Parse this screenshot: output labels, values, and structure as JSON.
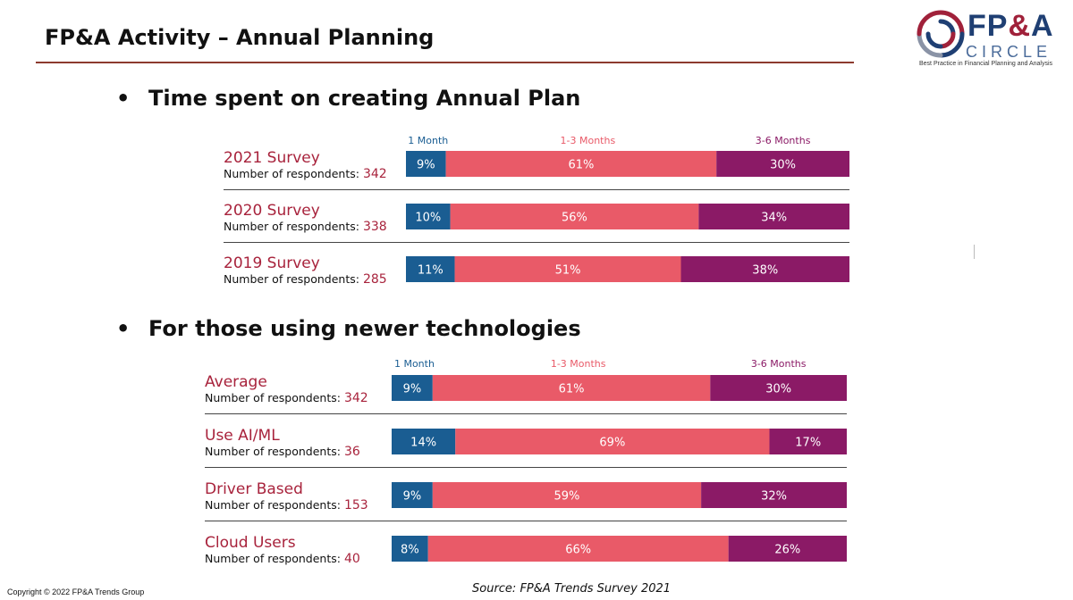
{
  "header": {
    "title": "FP&A Activity – Annual Planning",
    "logo_text_main": "FP",
    "logo_text_amp": "&",
    "logo_text_main2": "A",
    "logo_text_sub": "CIRCLE",
    "logo_tagline": "Best Practice in Financial Planning and Analysis"
  },
  "colors": {
    "one_month": "#1a5d92",
    "one_to_three": "#e95a68",
    "three_to_six": "#8b1a66",
    "label_red": "#a8233c",
    "legend_blue": "#1a5d92",
    "legend_pink": "#e95a68",
    "legend_purple": "#8b1a66"
  },
  "bullets": [
    "Time spent on creating Annual Plan",
    "For those using newer technologies"
  ],
  "chart_data": [
    {
      "type": "bar",
      "stacked": true,
      "orientation": "horizontal",
      "legend": [
        "1 Month",
        "1-3 Months",
        "3-6 Months"
      ],
      "respondents_label": "Number of respondents:",
      "rows": [
        {
          "label": "2021 Survey",
          "respondents": "342",
          "values": [
            9,
            61,
            30
          ]
        },
        {
          "label": "2020 Survey",
          "respondents": "338",
          "values": [
            10,
            56,
            34
          ]
        },
        {
          "label": "2019 Survey",
          "respondents": "285",
          "values": [
            11,
            51,
            38
          ]
        }
      ]
    },
    {
      "type": "bar",
      "stacked": true,
      "orientation": "horizontal",
      "legend": [
        "1 Month",
        "1-3 Months",
        "3-6 Months"
      ],
      "respondents_label": "Number of respondents:",
      "rows": [
        {
          "label": "Average",
          "respondents": "342",
          "values": [
            9,
            61,
            30
          ]
        },
        {
          "label": "Use AI/ML",
          "respondents": "36",
          "values": [
            14,
            69,
            17
          ]
        },
        {
          "label": "Driver Based",
          "respondents": "153",
          "values": [
            9,
            59,
            32
          ]
        },
        {
          "label": "Cloud Users",
          "respondents": "40",
          "values": [
            8,
            66,
            26
          ]
        }
      ]
    }
  ],
  "footer": {
    "copyright": "Copyright © 2022 FP&A Trends Group",
    "source": "Source: FP&A Trends Survey 2021"
  }
}
